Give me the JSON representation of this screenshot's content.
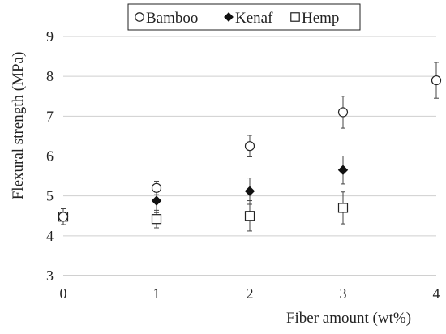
{
  "chart_data": {
    "type": "scatter",
    "xlabel": "Fiber amount (wt%)",
    "ylabel": "Flexural strength (MPa)",
    "xlim": [
      0,
      4
    ],
    "ylim": [
      3,
      9
    ],
    "x_ticks": [
      "0",
      "1",
      "2",
      "3",
      "4"
    ],
    "y_ticks": [
      "3",
      "4",
      "5",
      "6",
      "7",
      "8",
      "9"
    ],
    "grid": "horizontal",
    "legend_position": "top",
    "series": [
      {
        "name": "Bamboo",
        "marker": "open-circle",
        "color": "#222222",
        "points": [
          {
            "x": 0,
            "y": 4.48,
            "err": 0.2
          },
          {
            "x": 1,
            "y": 5.2,
            "err": 0.17
          },
          {
            "x": 2,
            "y": 6.25,
            "err": 0.27
          },
          {
            "x": 3,
            "y": 7.1,
            "err": 0.4
          },
          {
            "x": 4,
            "y": 7.9,
            "err": 0.45
          }
        ]
      },
      {
        "name": "Kenaf",
        "marker": "filled-diamond",
        "color": "#222222",
        "points": [
          {
            "x": 0,
            "y": 4.48,
            "err": 0.2
          },
          {
            "x": 1,
            "y": 4.88,
            "err": 0.3
          },
          {
            "x": 2,
            "y": 5.12,
            "err": 0.33
          },
          {
            "x": 3,
            "y": 5.65,
            "err": 0.35
          }
        ]
      },
      {
        "name": "Hemp",
        "marker": "open-square",
        "color": "#222222",
        "points": [
          {
            "x": 0,
            "y": 4.48,
            "err": 0.2
          },
          {
            "x": 1,
            "y": 4.42,
            "err": 0.22
          },
          {
            "x": 2,
            "y": 4.5,
            "err": 0.38
          },
          {
            "x": 3,
            "y": 4.7,
            "err": 0.4
          }
        ]
      }
    ]
  }
}
